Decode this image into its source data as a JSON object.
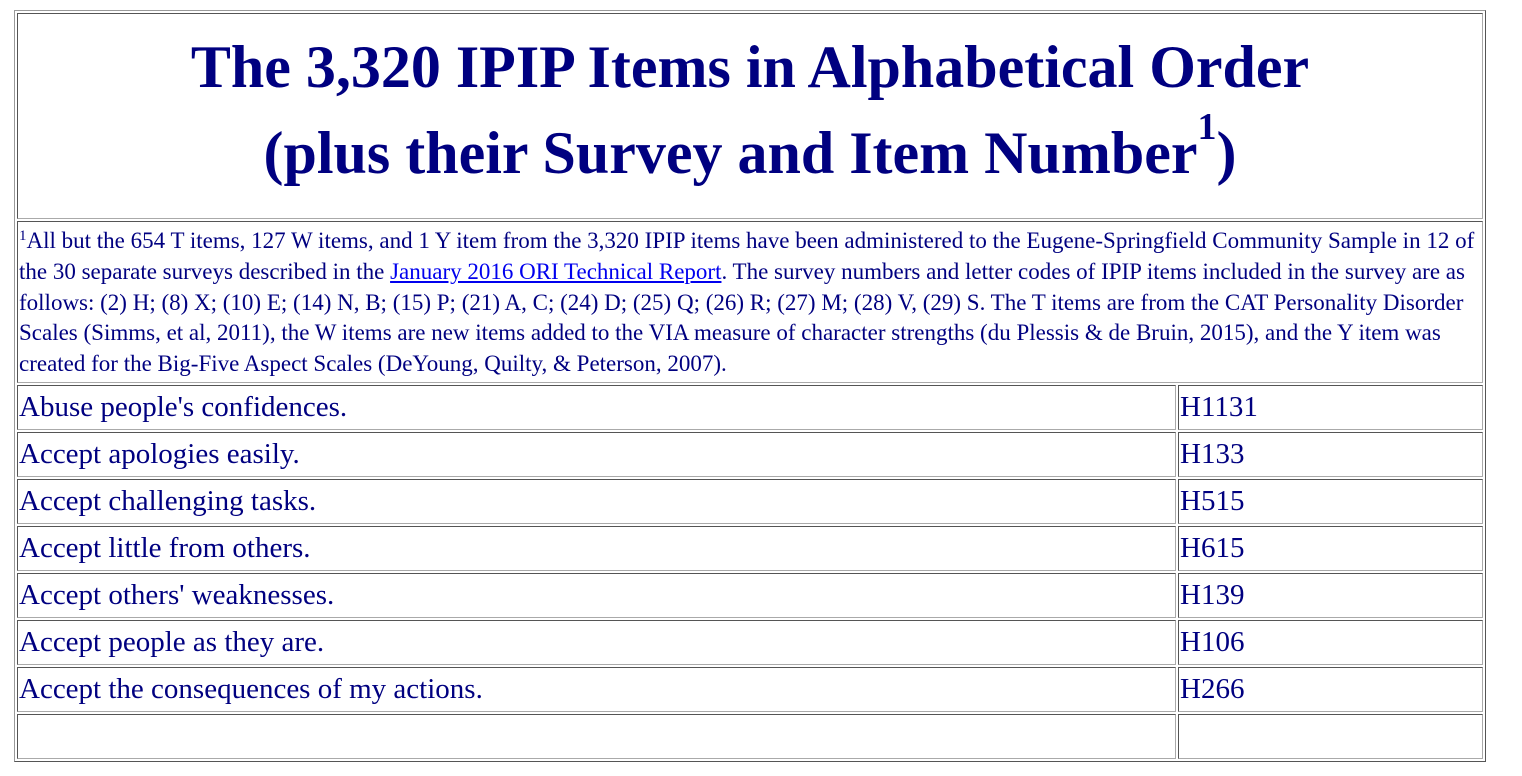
{
  "title": {
    "line1": "The 3,320 IPIP Items in Alphabetical Order",
    "line2": "(plus their Survey and Item Number",
    "sup": "1",
    "close": ")"
  },
  "footnote": {
    "marker": "1",
    "text_before_link": "All but the 654 T items, 127 W items, and 1 Y item from the 3,320 IPIP items have been administered to the Eugene-Springfield Community Sample in 12 of the 30 separate surveys described in the ",
    "link_text": "January 2016 ORI Technical Report",
    "text_after_link": ". The survey numbers and letter codes of IPIP items included in the survey are as follows: (2) H; (8) X; (10) E; (14) N, B; (15) P; (21) A, C; (24) D; (25) Q; (26) R; (27) M; (28) V, (29) S. The T items are from the CAT Personality Disorder Scales (Simms, et al, 2011), the W items are new items added to the VIA measure of character strengths (du Plessis & de Bruin, 2015), and the Y item was created for the Big-Five Aspect Scales (DeYoung, Quilty, & Peterson, 2007)."
  },
  "items": [
    {
      "text": "Abuse people's confidences.",
      "code": "H1131"
    },
    {
      "text": "Accept apologies easily.",
      "code": "H133"
    },
    {
      "text": "Accept challenging tasks.",
      "code": "H515"
    },
    {
      "text": "Accept little from others.",
      "code": "H615"
    },
    {
      "text": "Accept others' weaknesses.",
      "code": "H139"
    },
    {
      "text": "Accept people as they are.",
      "code": "H106"
    },
    {
      "text": "Accept the consequences of my actions.",
      "code": "H266"
    },
    {
      "text": "",
      "code": ""
    }
  ],
  "colors": {
    "text": "#000080",
    "link": "#0000ee",
    "border": "#555555"
  }
}
